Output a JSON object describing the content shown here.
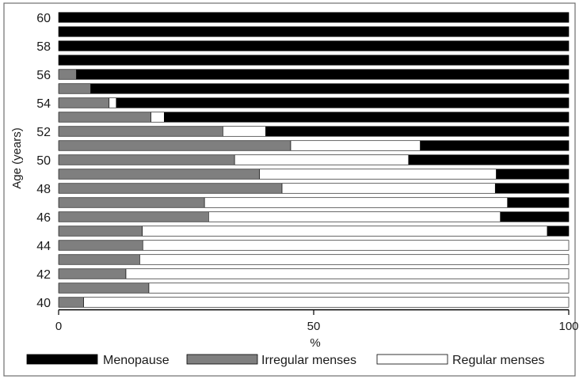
{
  "chart_data": {
    "type": "bar",
    "orientation": "horizontal",
    "stacked": true,
    "categories": [
      "60",
      "59",
      "58",
      "57",
      "56",
      "55",
      "54",
      "53",
      "52",
      "51",
      "50",
      "49",
      "48",
      "47",
      "46",
      "45",
      "44",
      "43",
      "42",
      "41",
      "40"
    ],
    "ytick_labels": [
      "60",
      "58",
      "56",
      "54",
      "52",
      "50",
      "48",
      "46",
      "44",
      "42",
      "40"
    ],
    "xtick_labels": [
      "0",
      "50",
      "100"
    ],
    "series": [
      {
        "name": "Irregular menses",
        "color": "#7f7f7f",
        "values": [
          0,
          0,
          0,
          0,
          3.5,
          6.3,
          9.9,
          18.1,
          32.2,
          45.5,
          34.5,
          39.4,
          43.8,
          28.6,
          29.4,
          16.4,
          16.5,
          15.9,
          13.2,
          17.7,
          4.9
        ]
      },
      {
        "name": "Regular menses",
        "color": "#ffffff",
        "values": [
          0,
          0,
          0,
          0,
          0,
          0,
          1.4,
          2.6,
          8.4,
          25.4,
          34.1,
          46.4,
          41.8,
          59.4,
          57.2,
          79.4,
          83.5,
          84.1,
          86.8,
          82.3,
          95.1
        ]
      },
      {
        "name": "Menopause",
        "color": "#000000",
        "values": [
          100,
          100,
          100,
          100,
          96.5,
          93.7,
          88.7,
          79.3,
          59.4,
          29.1,
          31.4,
          14.2,
          14.4,
          12.0,
          13.4,
          4.2,
          0,
          0,
          0,
          0,
          0
        ]
      }
    ],
    "xlabel": "%",
    "ylabel": "Age (years)",
    "xlim": [
      0,
      100
    ],
    "grid": false,
    "legend_position": "bottom",
    "legend": [
      {
        "name": "Menopause",
        "color": "#000000"
      },
      {
        "name": "Irregular menses",
        "color": "#7f7f7f"
      },
      {
        "name": "Regular menses",
        "color": "#ffffff"
      }
    ]
  }
}
